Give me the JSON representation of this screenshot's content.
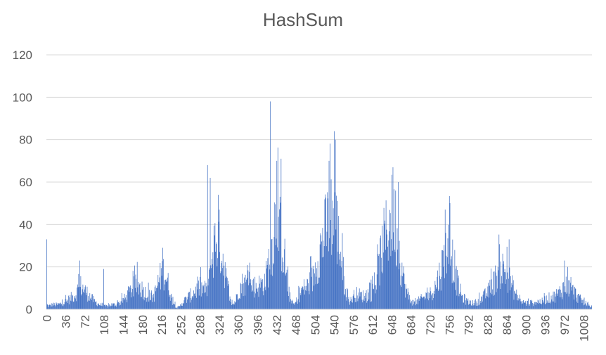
{
  "chart_data": {
    "type": "bar",
    "title": "HashSum",
    "xlabel": "",
    "ylabel": "",
    "ylim": [
      0,
      120
    ],
    "yticks": [
      0,
      20,
      40,
      60,
      80,
      100,
      120
    ],
    "xlim": [
      0,
      1023
    ],
    "xticks": [
      0,
      36,
      72,
      108,
      144,
      180,
      216,
      252,
      288,
      324,
      360,
      396,
      432,
      468,
      504,
      540,
      576,
      612,
      648,
      684,
      720,
      756,
      792,
      828,
      864,
      900,
      936,
      972,
      1008
    ],
    "grid": true,
    "legend": "none",
    "bar_color": "#4472C4",
    "envelope_keypoints": {
      "x": [
        0,
        1,
        3,
        10,
        20,
        30,
        40,
        48,
        55,
        60,
        64,
        72,
        80,
        85,
        90,
        100,
        108,
        115,
        120,
        130,
        140,
        150,
        160,
        170,
        180,
        190,
        200,
        205,
        210,
        215,
        220,
        225,
        230,
        235,
        240,
        245,
        250,
        256,
        264,
        270,
        280,
        288,
        295,
        300,
        305,
        310,
        318,
        325,
        330,
        335,
        340,
        345,
        350,
        355,
        360,
        368,
        380,
        390,
        396,
        402,
        410,
        420,
        425,
        430,
        435,
        440,
        445,
        450,
        455,
        460,
        465,
        470,
        475,
        480,
        490,
        500,
        510,
        520,
        530,
        535,
        540,
        545,
        550,
        555,
        560,
        565,
        570,
        575,
        580,
        590,
        600,
        610,
        620,
        625,
        630,
        640,
        645,
        650,
        655,
        660,
        665,
        670,
        675,
        680,
        685,
        690,
        700,
        710,
        720,
        730,
        740,
        745,
        750,
        755,
        760,
        765,
        770,
        780,
        790,
        800,
        810,
        820,
        830,
        835,
        840,
        845,
        850,
        855,
        860,
        865,
        870,
        880,
        890,
        900,
        910,
        920,
        930,
        940,
        950,
        960,
        965,
        970,
        975,
        980,
        985,
        990,
        1000,
        1010,
        1015,
        1020,
        1023
      ],
      "y": [
        33,
        3,
        2,
        3,
        3,
        4,
        6,
        8,
        10,
        14,
        15,
        12,
        9,
        7,
        5,
        3,
        2,
        2,
        3,
        3,
        5,
        8,
        13,
        16,
        13,
        9,
        8,
        12,
        18,
        22,
        25,
        20,
        14,
        6,
        3,
        1,
        2,
        5,
        7,
        9,
        12,
        14,
        13,
        12,
        18,
        32,
        48,
        43,
        35,
        25,
        12,
        5,
        3,
        6,
        12,
        17,
        16,
        15,
        15,
        16,
        18,
        35,
        45,
        62,
        52,
        48,
        38,
        22,
        10,
        4,
        3,
        6,
        10,
        13,
        15,
        20,
        35,
        47,
        58,
        62,
        60,
        52,
        42,
        28,
        16,
        8,
        5,
        8,
        10,
        9,
        8,
        10,
        20,
        30,
        40,
        52,
        58,
        60,
        55,
        42,
        30,
        20,
        12,
        8,
        5,
        4,
        6,
        8,
        10,
        15,
        25,
        32,
        38,
        40,
        36,
        28,
        18,
        8,
        5,
        4,
        5,
        8,
        12,
        15,
        18,
        22,
        25,
        26,
        25,
        22,
        18,
        10,
        5,
        4,
        4,
        5,
        5,
        7,
        8,
        10,
        12,
        14,
        15,
        14,
        13,
        11,
        7,
        4,
        3,
        2,
        2
      ],
      "peaks": [
        [
          62,
          23
        ],
        [
          107,
          19
        ],
        [
          218,
          29
        ],
        [
          302,
          68
        ],
        [
          307,
          62
        ],
        [
          322,
          54
        ],
        [
          381,
          22
        ],
        [
          420,
          98
        ],
        [
          432,
          70
        ],
        [
          440,
          71
        ],
        [
          530,
          70
        ],
        [
          540,
          84
        ],
        [
          542,
          80
        ],
        [
          650,
          67
        ],
        [
          660,
          60
        ],
        [
          748,
          47
        ],
        [
          868,
          33
        ],
        [
          972,
          23
        ],
        [
          978,
          20
        ]
      ]
    }
  }
}
